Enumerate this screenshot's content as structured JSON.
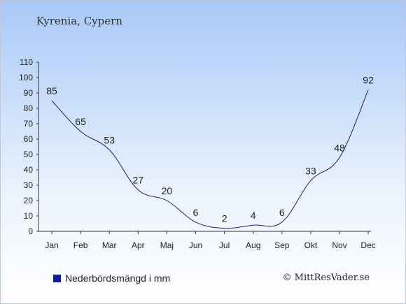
{
  "location_title": "Kyrenia, Cypern",
  "legend_label": "Nederbördsmängd i mm",
  "credit": "© MittResVader.se",
  "colors": {
    "line": "#1a1a8c",
    "legend_swatch": "#0d1aa6"
  },
  "chart_data": {
    "type": "line",
    "categories": [
      "Jan",
      "Feb",
      "Mar",
      "Apr",
      "Maj",
      "Jun",
      "Jul",
      "Aug",
      "Sep",
      "Okt",
      "Nov",
      "Dec"
    ],
    "values": [
      85,
      65,
      53,
      27,
      20,
      6,
      2,
      4,
      6,
      33,
      48,
      92
    ],
    "ylim": [
      0,
      110
    ],
    "yticks": [
      0,
      10,
      20,
      30,
      40,
      50,
      60,
      70,
      80,
      90,
      100,
      110
    ],
    "grid": false,
    "legend_position": "bottom-left"
  }
}
